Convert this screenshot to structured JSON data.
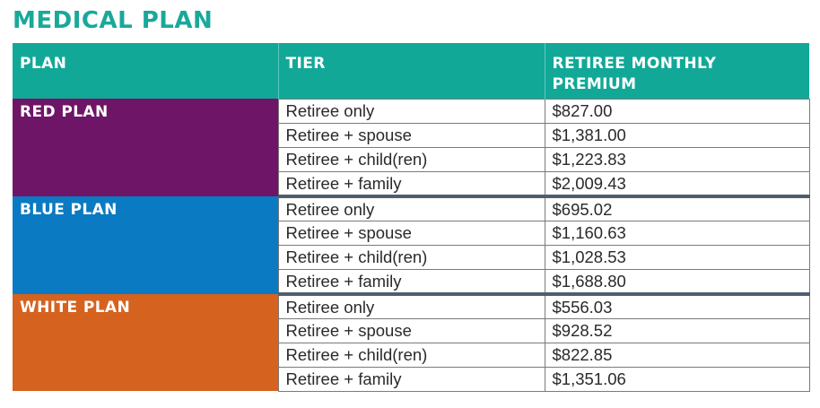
{
  "title": "MEDICAL PLAN",
  "colors": {
    "title": "#1aa89a",
    "header_bg": "#12a898",
    "red_plan": "#6f1567",
    "blue_plan": "#0a7ac2",
    "white_plan": "#d6621f",
    "group_divider": "#4f5d6e"
  },
  "table": {
    "headers": {
      "plan": "PLAN",
      "tier": "TIER",
      "premium_line1": "RETIREE MONTHLY",
      "premium_line2": "PREMIUM"
    },
    "groups": [
      {
        "plan": "RED PLAN",
        "rows": [
          {
            "tier": "Retiree only",
            "premium": "$827.00"
          },
          {
            "tier": "Retiree + spouse",
            "premium": "$1,381.00"
          },
          {
            "tier": "Retiree + child(ren)",
            "premium": "$1,223.83"
          },
          {
            "tier": "Retiree + family",
            "premium": "$2,009.43"
          }
        ]
      },
      {
        "plan": "BLUE PLAN",
        "rows": [
          {
            "tier": "Retiree only",
            "premium": "$695.02"
          },
          {
            "tier": "Retiree + spouse",
            "premium": "$1,160.63"
          },
          {
            "tier": "Retiree + child(ren)",
            "premium": "$1,028.53"
          },
          {
            "tier": "Retiree + family",
            "premium": "$1,688.80"
          }
        ]
      },
      {
        "plan": "WHITE PLAN",
        "rows": [
          {
            "tier": "Retiree only",
            "premium": "$556.03"
          },
          {
            "tier": "Retiree + spouse",
            "premium": "$928.52"
          },
          {
            "tier": "Retiree + child(ren)",
            "premium": "$822.85"
          },
          {
            "tier": "Retiree + family",
            "premium": "$1,351.06"
          }
        ]
      }
    ]
  }
}
